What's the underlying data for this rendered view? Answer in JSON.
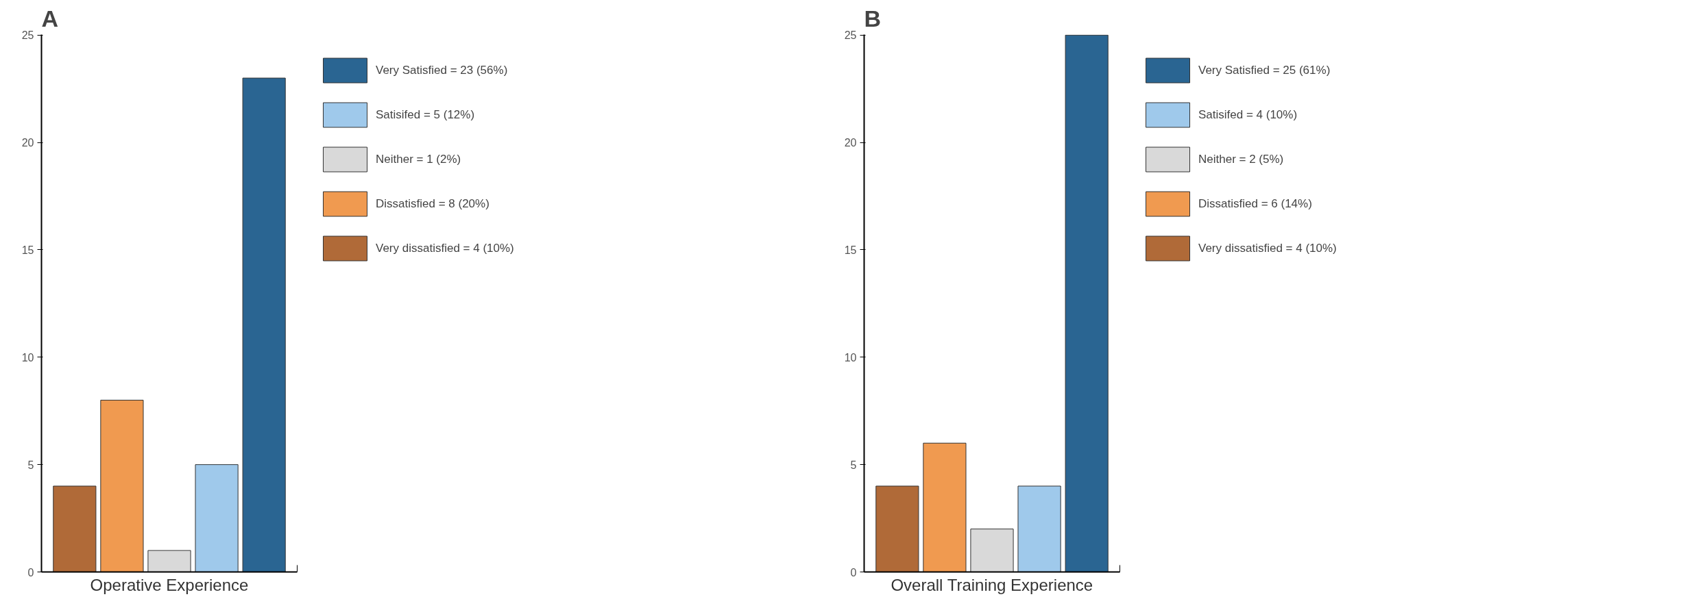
{
  "chart_data": [
    {
      "type": "bar",
      "title": "A",
      "xlabel": "Operative Experience",
      "categories": [
        null,
        null,
        null,
        null,
        null
      ],
      "ylim": [
        0,
        25
      ],
      "yticks": [
        0,
        5,
        10,
        15,
        20,
        25
      ],
      "grid": false,
      "legend": "right",
      "series": [
        {
          "name": "Very Satisfied = 23 (56%)",
          "color": "#2a6592",
          "values": [
            null,
            null,
            null,
            null,
            23
          ]
        },
        {
          "name": "Satisifed = 5 (12%)",
          "color": "#9fc9eb",
          "values": [
            null,
            null,
            null,
            5,
            null
          ]
        },
        {
          "name": "Neither = 1 (2%)",
          "color": "#d9d9d9",
          "values": [
            null,
            null,
            1,
            null,
            null
          ]
        },
        {
          "name": "Dissatisfied = 8 (20%)",
          "color": "#f09a50",
          "values": [
            null,
            8,
            null,
            null,
            null
          ]
        },
        {
          "name": "Very dissatisfied = 4 (10%)",
          "color": "#b06a38",
          "values": [
            4,
            null,
            null,
            null,
            null
          ]
        }
      ]
    },
    {
      "type": "bar",
      "title": "B",
      "xlabel": "Overall Training Experience",
      "categories": [
        null,
        null,
        null,
        null,
        null
      ],
      "ylim": [
        0,
        25
      ],
      "yticks": [
        0,
        5,
        10,
        15,
        20,
        25
      ],
      "grid": false,
      "legend": "right",
      "series": [
        {
          "name": "Very Satisfied = 25 (61%)",
          "color": "#2a6592",
          "values": [
            null,
            null,
            null,
            null,
            25
          ]
        },
        {
          "name": "Satisifed = 4 (10%)",
          "color": "#9fc9eb",
          "values": [
            null,
            null,
            null,
            4,
            null
          ]
        },
        {
          "name": "Neither = 2 (5%)",
          "color": "#d9d9d9",
          "values": [
            null,
            null,
            2,
            null,
            null
          ]
        },
        {
          "name": "Dissatisfied = 6 (14%)",
          "color": "#f09a50",
          "values": [
            null,
            6,
            null,
            null,
            null
          ]
        },
        {
          "name": "Very dissatisfied = 4 (10%)",
          "color": "#b06a38",
          "values": [
            4,
            null,
            null,
            null,
            null
          ]
        }
      ]
    }
  ]
}
